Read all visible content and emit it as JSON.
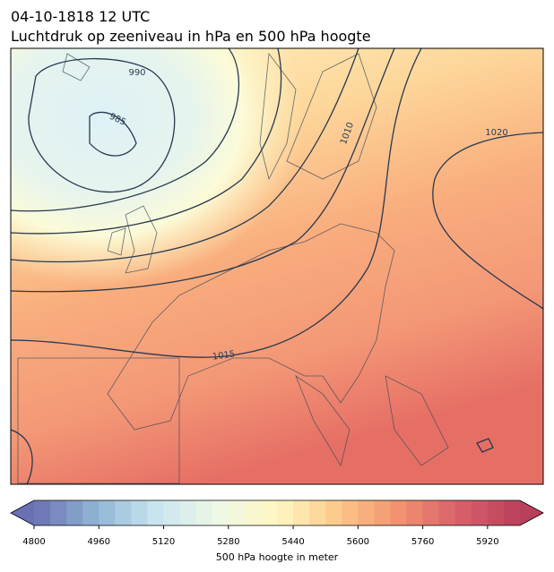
{
  "title": "04-10-1818 12 UTC",
  "subtitle": "Luchtdruk op zeeniveau in hPa en 500 hPa hoogte",
  "contour_labels": [
    "990",
    "985",
    "1010",
    "1020",
    "1015"
  ],
  "colorbar": {
    "label": "500 hPa hoogte in meter",
    "lim": [
      4800,
      6000
    ],
    "ticks": [
      4800,
      4960,
      5120,
      5280,
      5440,
      5600,
      5760,
      5920
    ],
    "colors": [
      "#6a70b4",
      "#8fb4d4",
      "#c8e5ef",
      "#eef8e6",
      "#fff7c2",
      "#fcc98a",
      "#f29270",
      "#d8606a",
      "#b9405a"
    ]
  }
}
